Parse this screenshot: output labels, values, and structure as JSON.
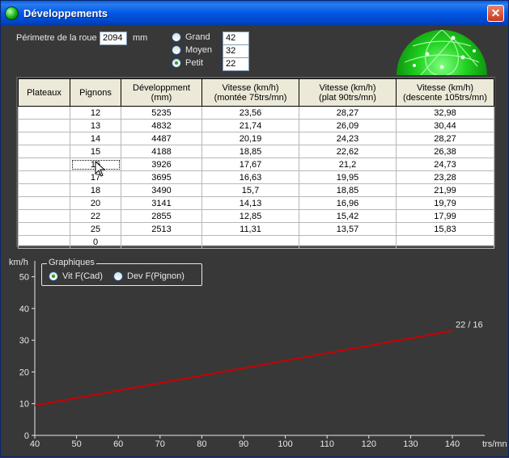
{
  "window": {
    "title": "Développements",
    "close_label": "✕"
  },
  "form": {
    "perimeter_label": "Périmetre de la roue :",
    "perimeter_value": "2094",
    "perimeter_unit": "mm",
    "plateaux": [
      {
        "label": "Grand",
        "value": "42",
        "checked": false
      },
      {
        "label": "Moyen",
        "value": "32",
        "checked": false
      },
      {
        "label": "Petit",
        "value": "22",
        "checked": true
      }
    ]
  },
  "table": {
    "headers": [
      [
        "Plateaux"
      ],
      [
        "Pignons"
      ],
      [
        "Développment",
        "(mm)"
      ],
      [
        "Vitesse (km/h)",
        "(montée 75trs/mn)"
      ],
      [
        "Vitesse (km/h)",
        "(plat 90trs/mn)"
      ],
      [
        "Vitesse (km/h)",
        "(descente 105trs/mn)"
      ]
    ],
    "rows": [
      [
        "",
        "12",
        "5235",
        "23,56",
        "28,27",
        "32,98"
      ],
      [
        "",
        "13",
        "4832",
        "21,74",
        "26,09",
        "30,44"
      ],
      [
        "",
        "14",
        "4487",
        "20,19",
        "24,23",
        "28,27"
      ],
      [
        "",
        "15",
        "4188",
        "18,85",
        "22,62",
        "26,38"
      ],
      [
        "",
        "16",
        "3926",
        "17,67",
        "21,2",
        "24,73"
      ],
      [
        "",
        "17",
        "3695",
        "16,63",
        "19,95",
        "23,28"
      ],
      [
        "",
        "18",
        "3490",
        "15,7",
        "18,85",
        "21,99"
      ],
      [
        "",
        "20",
        "3141",
        "14,13",
        "16,96",
        "19,79"
      ],
      [
        "",
        "22",
        "2855",
        "12,85",
        "15,42",
        "17,99"
      ],
      [
        "",
        "25",
        "2513",
        "11,31",
        "13,57",
        "15,83"
      ],
      [
        "",
        "0",
        "",
        "",
        "",
        ""
      ]
    ],
    "selected_row": 4,
    "selected_col": 1
  },
  "graph_options": {
    "title": "Graphiques",
    "options": [
      {
        "label": "Vit F(Cad)",
        "checked": true
      },
      {
        "label": "Dev F(Pignon)",
        "checked": false
      }
    ]
  },
  "chart_data": {
    "type": "line",
    "xlabel": "trs/mn",
    "ylabel": "km/h",
    "xlim": [
      40,
      140
    ],
    "ylim": [
      0,
      55
    ],
    "xticks": [
      40,
      50,
      60,
      70,
      80,
      90,
      100,
      110,
      120,
      130,
      140
    ],
    "yticks": [
      0,
      10,
      20,
      30,
      40,
      50
    ],
    "series": [
      {
        "x": [
          40,
          140
        ],
        "y": [
          9.42,
          32.98
        ],
        "color": "#cc0000"
      }
    ],
    "annotation": "22 / 16",
    "background": "#383838",
    "axis_color": "#e8e8e8"
  }
}
